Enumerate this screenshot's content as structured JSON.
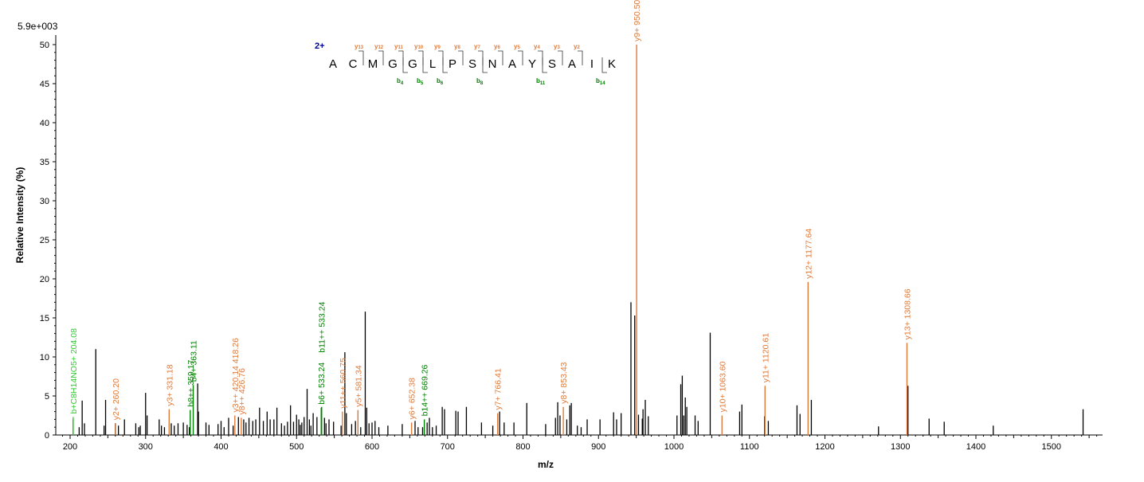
{
  "colors": {
    "axis": "#000000",
    "peak": "#000000",
    "y_ion": "#e07a3a",
    "b_ion": "#008000",
    "b_ion_light": "#33cc33",
    "charge": "#00008b"
  },
  "chart_data": {
    "type": "bar",
    "scale_label": "5.9e+003",
    "xlabel": "m/z",
    "ylabel": "Relative   Intensity (%)",
    "xlim": [
      175,
      1570
    ],
    "ylim": [
      0,
      50
    ],
    "x_ticks": [
      200,
      300,
      400,
      500,
      600,
      700,
      800,
      900,
      1000,
      1100,
      1200,
      1300,
      1400,
      1500
    ],
    "y_ticks": [
      0,
      5,
      10,
      15,
      20,
      25,
      30,
      35,
      40,
      45,
      50
    ],
    "peptide": {
      "charge": "2+",
      "sequence": [
        "A",
        "C",
        "M",
        "G",
        "G",
        "L",
        "P",
        "S",
        "N",
        "A",
        "Y",
        "S",
        "A",
        "I",
        "K"
      ],
      "y_ions": [
        {
          "after": 2,
          "label": "y",
          "num": "13"
        },
        {
          "after": 3,
          "label": "y",
          "num": "12"
        },
        {
          "after": 4,
          "label": "y",
          "num": "11"
        },
        {
          "after": 5,
          "label": "y",
          "num": "10"
        },
        {
          "after": 6,
          "label": "y",
          "num": "9"
        },
        {
          "after": 7,
          "label": "y",
          "num": "8"
        },
        {
          "after": 8,
          "label": "y",
          "num": "7"
        },
        {
          "after": 9,
          "label": "y",
          "num": "6"
        },
        {
          "after": 10,
          "label": "y",
          "num": "5"
        },
        {
          "after": 11,
          "label": "y",
          "num": "4"
        },
        {
          "after": 12,
          "label": "y",
          "num": "3"
        },
        {
          "after": 13,
          "label": "y",
          "num": "2"
        }
      ],
      "b_ions": [
        {
          "after": 4,
          "label": "b",
          "num": "4"
        },
        {
          "after": 5,
          "label": "b",
          "num": "5"
        },
        {
          "after": 6,
          "label": "b",
          "num": "6"
        },
        {
          "after": 8,
          "label": "b",
          "num": "8"
        },
        {
          "after": 11,
          "label": "b",
          "num": "11"
        },
        {
          "after": 14,
          "label": "b",
          "num": "14"
        }
      ]
    },
    "labeled_peaks": [
      {
        "mz": 204.08,
        "intensity": 2.3,
        "kind": "b_light",
        "label": "b+C8H14NO5+ 204.08"
      },
      {
        "mz": 260.2,
        "intensity": 1.5,
        "kind": "y",
        "label": "y2+ 260.20"
      },
      {
        "mz": 331.18,
        "intensity": 3.3,
        "kind": "y",
        "label": "y3+ 331.18"
      },
      {
        "mz": 359.17,
        "intensity": 3.2,
        "kind": "b",
        "label": "b8++ 359.17"
      },
      {
        "mz": 363.11,
        "intensity": 6.4,
        "kind": "b",
        "label": "b4+ 363.11"
      },
      {
        "mz": 418.26,
        "intensity": 2.5,
        "kind": "y",
        "label": "y3++ 420.14 418.26"
      },
      {
        "mz": 426.76,
        "intensity": 2.2,
        "kind": "y",
        "label": "y8++ 426.76"
      },
      {
        "mz": 533.24,
        "intensity": 3.5,
        "kind": "b",
        "label": "b6+ 533.24"
      },
      {
        "mz": 533.24,
        "intensity": 3.6,
        "kind": "b",
        "label": "b11++ 533.24"
      },
      {
        "mz": 560.75,
        "intensity": 3.0,
        "kind": "y",
        "label": "y11++ 560.75"
      },
      {
        "mz": 581.34,
        "intensity": 3.2,
        "kind": "y",
        "label": "y5+ 581.34"
      },
      {
        "mz": 652.38,
        "intensity": 1.6,
        "kind": "y",
        "label": "y6+ 652.38"
      },
      {
        "mz": 669.26,
        "intensity": 2.0,
        "kind": "b",
        "label": "b14++ 669.26"
      },
      {
        "mz": 766.41,
        "intensity": 2.8,
        "kind": "y",
        "label": "y7+ 766.41"
      },
      {
        "mz": 853.43,
        "intensity": 3.6,
        "kind": "y",
        "label": "y8+ 853.43"
      },
      {
        "mz": 950.5,
        "intensity": 50.0,
        "kind": "y",
        "label": "y9+ 950.50"
      },
      {
        "mz": 1063.6,
        "intensity": 2.5,
        "kind": "y",
        "label": "y10+ 1063.60"
      },
      {
        "mz": 1120.61,
        "intensity": 6.3,
        "kind": "y",
        "label": "y11+ 1120.61"
      },
      {
        "mz": 1177.64,
        "intensity": 19.6,
        "kind": "y",
        "label": "y12+ 1177.64"
      },
      {
        "mz": 1308.66,
        "intensity": 11.8,
        "kind": "y",
        "label": "y13+ 1308.66"
      }
    ],
    "peaks": [
      [
        204,
        2.0
      ],
      [
        212,
        1.0
      ],
      [
        216,
        4.4
      ],
      [
        219,
        1.5
      ],
      [
        234,
        11.0
      ],
      [
        245,
        1.2
      ],
      [
        247,
        4.5
      ],
      [
        260,
        1.5
      ],
      [
        264,
        1.2
      ],
      [
        272,
        2.0
      ],
      [
        287,
        1.5
      ],
      [
        291,
        1.0
      ],
      [
        293,
        1.2
      ],
      [
        300,
        5.4
      ],
      [
        302,
        2.5
      ],
      [
        318,
        2.0
      ],
      [
        321,
        1.2
      ],
      [
        325,
        1.0
      ],
      [
        334,
        1.5
      ],
      [
        338,
        1.2
      ],
      [
        343,
        1.5
      ],
      [
        350,
        1.6
      ],
      [
        355,
        1.3
      ],
      [
        358,
        1.0
      ],
      [
        369,
        6.6
      ],
      [
        370,
        3.0
      ],
      [
        380,
        1.6
      ],
      [
        384,
        1.3
      ],
      [
        396,
        1.4
      ],
      [
        400,
        1.8
      ],
      [
        404,
        1.0
      ],
      [
        410,
        2.2
      ],
      [
        416,
        1.2
      ],
      [
        423,
        2.3
      ],
      [
        430,
        2.0
      ],
      [
        433,
        1.6
      ],
      [
        437,
        2.2
      ],
      [
        442,
        1.8
      ],
      [
        446,
        2.0
      ],
      [
        451,
        3.5
      ],
      [
        456,
        1.8
      ],
      [
        461,
        3.0
      ],
      [
        465,
        2.0
      ],
      [
        470,
        2.0
      ],
      [
        474,
        3.5
      ],
      [
        480,
        1.5
      ],
      [
        484,
        1.2
      ],
      [
        488,
        1.7
      ],
      [
        492,
        3.8
      ],
      [
        496,
        1.7
      ],
      [
        500,
        2.6
      ],
      [
        503,
        2.0
      ],
      [
        505,
        1.3
      ],
      [
        507,
        1.6
      ],
      [
        510,
        2.3
      ],
      [
        514,
        5.9
      ],
      [
        517,
        2.0
      ],
      [
        519,
        1.2
      ],
      [
        522,
        2.8
      ],
      [
        527,
        2.3
      ],
      [
        537,
        2.2
      ],
      [
        539,
        1.5
      ],
      [
        543,
        2.0
      ],
      [
        549,
        1.7
      ],
      [
        559,
        1.2
      ],
      [
        564,
        10.6
      ],
      [
        566,
        2.8
      ],
      [
        573,
        1.4
      ],
      [
        578,
        1.8
      ],
      [
        585,
        1.0
      ],
      [
        591,
        15.8
      ],
      [
        593,
        3.5
      ],
      [
        596,
        1.5
      ],
      [
        600,
        1.6
      ],
      [
        604,
        1.8
      ],
      [
        609,
        1.0
      ],
      [
        621,
        1.2
      ],
      [
        640,
        1.4
      ],
      [
        657,
        1.8
      ],
      [
        661,
        1.0
      ],
      [
        667,
        1.0
      ],
      [
        673,
        1.6
      ],
      [
        676,
        2.2
      ],
      [
        680,
        1.0
      ],
      [
        685,
        1.2
      ],
      [
        693,
        3.6
      ],
      [
        696,
        3.3
      ],
      [
        711,
        3.1
      ],
      [
        714,
        3.0
      ],
      [
        725,
        3.6
      ],
      [
        745,
        1.6
      ],
      [
        760,
        1.2
      ],
      [
        769,
        3.0
      ],
      [
        775,
        1.6
      ],
      [
        788,
        1.6
      ],
      [
        805,
        4.1
      ],
      [
        830,
        1.4
      ],
      [
        843,
        2.2
      ],
      [
        846,
        4.2
      ],
      [
        849,
        2.5
      ],
      [
        858,
        2.0
      ],
      [
        862,
        3.8
      ],
      [
        864,
        4.1
      ],
      [
        872,
        1.2
      ],
      [
        877,
        1.0
      ],
      [
        885,
        2.0
      ],
      [
        902,
        2.0
      ],
      [
        920,
        2.9
      ],
      [
        924,
        2.0
      ],
      [
        930,
        2.8
      ],
      [
        943,
        17.0
      ],
      [
        948,
        15.3
      ],
      [
        953,
        2.6
      ],
      [
        958,
        2.1
      ],
      [
        959,
        3.3
      ],
      [
        962,
        4.5
      ],
      [
        966,
        2.4
      ],
      [
        1004,
        2.5
      ],
      [
        1009,
        6.5
      ],
      [
        1011,
        7.6
      ],
      [
        1013,
        2.5
      ],
      [
        1015,
        4.8
      ],
      [
        1017,
        3.6
      ],
      [
        1028,
        2.5
      ],
      [
        1032,
        1.8
      ],
      [
        1048,
        13.1
      ],
      [
        1087,
        3.0
      ],
      [
        1090,
        3.9
      ],
      [
        1120,
        2.4
      ],
      [
        1125,
        1.8
      ],
      [
        1163,
        3.8
      ],
      [
        1167,
        2.7
      ],
      [
        1182,
        4.5
      ],
      [
        1271,
        1.1
      ],
      [
        1310,
        6.3
      ],
      [
        1338,
        2.1
      ],
      [
        1358,
        1.7
      ],
      [
        1423,
        1.2
      ],
      [
        1542,
        3.3
      ]
    ]
  }
}
